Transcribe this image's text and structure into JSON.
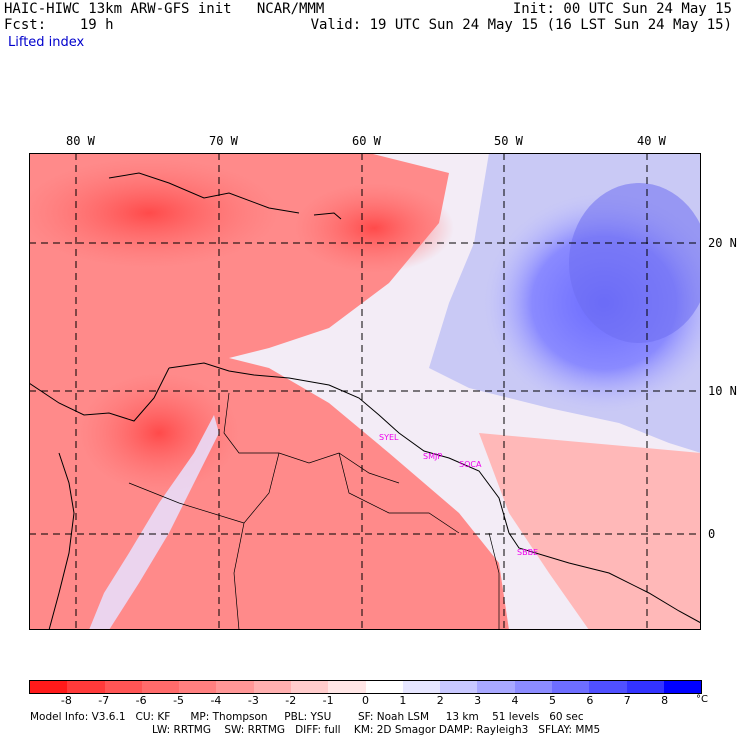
{
  "header": {
    "title_left": "HAIC-HIWC 13km ARW-GFS init   NCAR/MMM",
    "fcst": "Fcst:    19 h",
    "init": "Init: 00 UTC Sun 24 May 15",
    "valid": "Valid: 19 UTC Sun 24 May 15 (16 LST Sun 24 May 15)",
    "field": "Lifted index"
  },
  "map": {
    "lon_labels": [
      "80 W",
      "70 W",
      "60 W",
      "50 W",
      "40 W"
    ],
    "lat_labels": [
      "20 N",
      "10 N",
      "0"
    ],
    "cities": [
      "SYEL",
      "SMJP",
      "SOCA",
      "SBBE"
    ]
  },
  "colorbar": {
    "tick_labels": [
      "-8",
      "-7",
      "-6",
      "-5",
      "-4",
      "-3",
      "-2",
      "-1",
      "0",
      "1",
      "2",
      "3",
      "4",
      "5",
      "6",
      "7",
      "8"
    ],
    "unit": "°C",
    "colors": [
      "#ff1a1a",
      "#ff3a3a",
      "#ff5555",
      "#ff6b6b",
      "#ff8080",
      "#ff9797",
      "#ffb0b0",
      "#ffcccc",
      "#ffe6e6",
      "#ffffff",
      "#e6e6ff",
      "#c8c8ff",
      "#a8a8ff",
      "#8c8cff",
      "#6e6eff",
      "#5050ff",
      "#3333ff",
      "#0000ff"
    ]
  },
  "footer": {
    "line1": "Model Info: V3.6.1   CU: KF      MP: Thompson     PBL: YSU        SF: Noah LSM     13 km    51 levels   60 sec",
    "line2": "LW: RRTMG    SW: RRTMG   DIFF: full    KM: 2D Smagor DAMP: Rayleigh3   SFLAY: MM5"
  }
}
